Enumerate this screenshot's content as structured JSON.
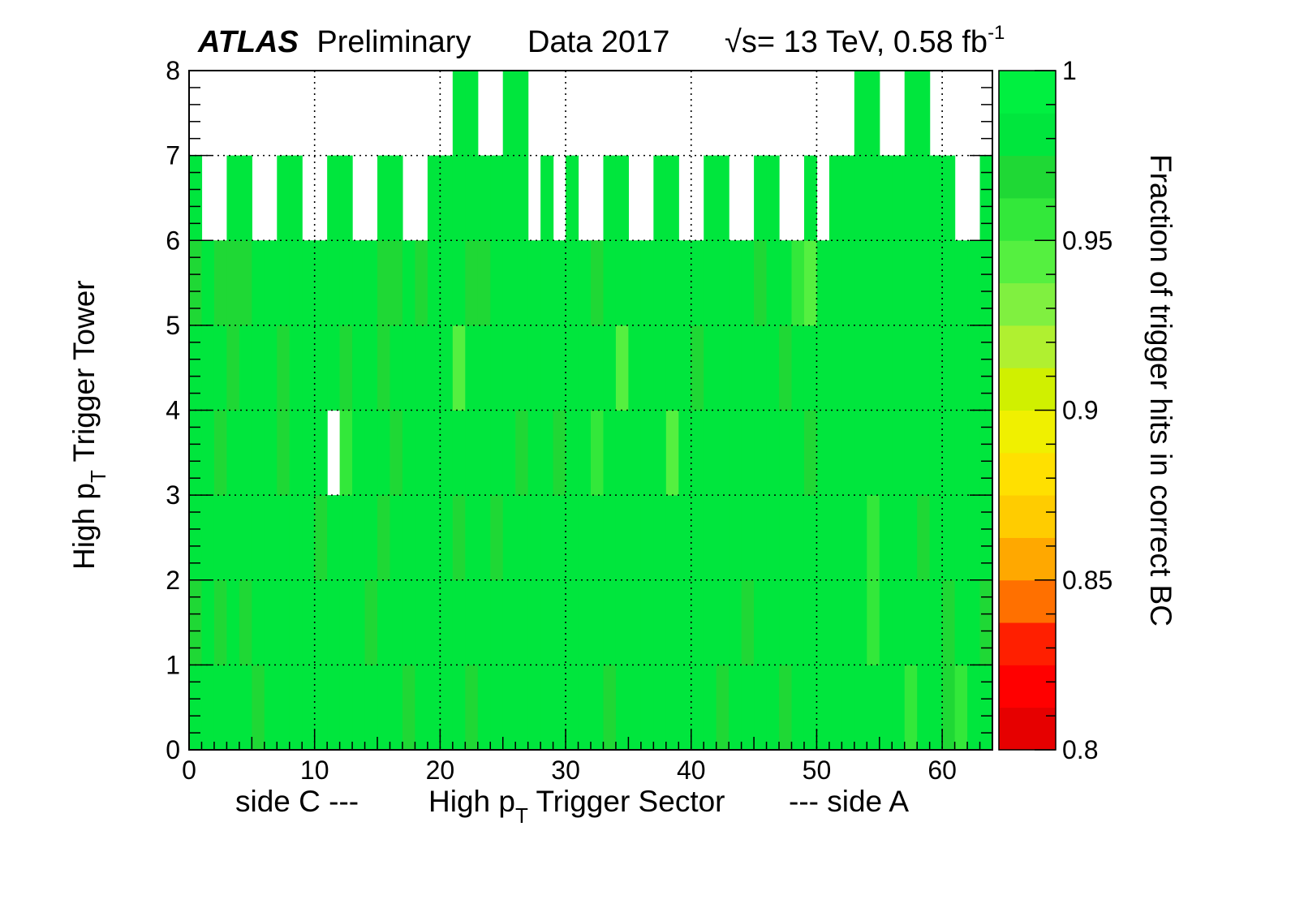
{
  "header": {
    "experiment": "ATLAS",
    "status": "Preliminary",
    "dataset": "Data 2017",
    "energy_sqrt": "√s",
    "energy_rest": "= 13 TeV, 0.58 fb",
    "lumi_exp": "-1"
  },
  "chart_data": {
    "type": "heatmap",
    "xlabel": {
      "left": "side C ---",
      "main": "High p",
      "main_sub": "T",
      "main_rest": " Trigger Sector",
      "right": "--- side A"
    },
    "ylabel": {
      "main": "High p",
      "sub": "T",
      "rest": " Trigger Tower"
    },
    "zlabel": "Fraction of trigger hits in correct BC",
    "xlim": [
      0,
      64
    ],
    "ylim": [
      0,
      8
    ],
    "zlim": [
      0.8,
      1.0
    ],
    "x_ticks": [
      "0",
      "10",
      "20",
      "30",
      "40",
      "50",
      "60"
    ],
    "y_ticks": [
      "0",
      "1",
      "2",
      "3",
      "4",
      "5",
      "6",
      "7",
      "8"
    ],
    "z_ticks": [
      "0.8",
      "0.85",
      "0.9",
      "0.95",
      "1"
    ],
    "x_grid": [
      10,
      20,
      30,
      40,
      50,
      60
    ],
    "y_grid": [
      1,
      2,
      3,
      4,
      5,
      6,
      7
    ],
    "default_value": 0.98,
    "palette": [
      "#e60000",
      "#ff0000",
      "#ff1f00",
      "#ff7000",
      "#ffa800",
      "#ffcc00",
      "#ffe000",
      "#f0f000",
      "#d0f000",
      "#b0f030",
      "#80f040",
      "#55f040",
      "#33e83a",
      "#1fd835",
      "#00e63d",
      "#00f040"
    ],
    "empty_cells": [
      {
        "row": 7,
        "cols": [
          0,
          1,
          2,
          3,
          4,
          5,
          6,
          7,
          8,
          9,
          10,
          11,
          12,
          13,
          14,
          15,
          16,
          17,
          18,
          19,
          20,
          23,
          24,
          27,
          28,
          29,
          30,
          31,
          32,
          33,
          34,
          35,
          36,
          37,
          38,
          39,
          40,
          41,
          42,
          43,
          44,
          45,
          46,
          47,
          48,
          49,
          50,
          51,
          52,
          55,
          56,
          59,
          60,
          61,
          62,
          63
        ]
      },
      {
        "row": 6,
        "cols": [
          1,
          2,
          5,
          6,
          9,
          10,
          13,
          14,
          17,
          18,
          27,
          29,
          31,
          32,
          35,
          36,
          39,
          40,
          43,
          44,
          47,
          48,
          50,
          61,
          62
        ]
      },
      {
        "row": 3,
        "cols": [
          11
        ]
      }
    ],
    "cells": [
      {
        "row": 5,
        "col": 0,
        "v": 0.97
      },
      {
        "row": 5,
        "col": 2,
        "v": 0.97
      },
      {
        "row": 5,
        "col": 3,
        "v": 0.97
      },
      {
        "row": 5,
        "col": 4,
        "v": 0.97
      },
      {
        "row": 5,
        "col": 15,
        "v": 0.97
      },
      {
        "row": 5,
        "col": 16,
        "v": 0.97
      },
      {
        "row": 5,
        "col": 18,
        "v": 0.97
      },
      {
        "row": 5,
        "col": 22,
        "v": 0.97
      },
      {
        "row": 5,
        "col": 23,
        "v": 0.97
      },
      {
        "row": 5,
        "col": 32,
        "v": 0.97
      },
      {
        "row": 5,
        "col": 45,
        "v": 0.97
      },
      {
        "row": 5,
        "col": 48,
        "v": 0.96
      },
      {
        "row": 5,
        "col": 49,
        "v": 0.945
      },
      {
        "row": 4,
        "col": 3,
        "v": 0.975
      },
      {
        "row": 4,
        "col": 7,
        "v": 0.97
      },
      {
        "row": 4,
        "col": 12,
        "v": 0.97
      },
      {
        "row": 4,
        "col": 15,
        "v": 0.975
      },
      {
        "row": 4,
        "col": 21,
        "v": 0.945
      },
      {
        "row": 4,
        "col": 34,
        "v": 0.945
      },
      {
        "row": 4,
        "col": 40,
        "v": 0.97
      },
      {
        "row": 4,
        "col": 47,
        "v": 0.975
      },
      {
        "row": 3,
        "col": 2,
        "v": 0.975
      },
      {
        "row": 3,
        "col": 7,
        "v": 0.97
      },
      {
        "row": 3,
        "col": 12,
        "v": 0.96
      },
      {
        "row": 3,
        "col": 16,
        "v": 0.975
      },
      {
        "row": 3,
        "col": 26,
        "v": 0.975
      },
      {
        "row": 3,
        "col": 29,
        "v": 0.975
      },
      {
        "row": 3,
        "col": 32,
        "v": 0.96
      },
      {
        "row": 3,
        "col": 38,
        "v": 0.945
      },
      {
        "row": 3,
        "col": 49,
        "v": 0.975
      },
      {
        "row": 2,
        "col": 10,
        "v": 0.97
      },
      {
        "row": 2,
        "col": 15,
        "v": 0.975
      },
      {
        "row": 2,
        "col": 21,
        "v": 0.97
      },
      {
        "row": 2,
        "col": 24,
        "v": 0.975
      },
      {
        "row": 2,
        "col": 54,
        "v": 0.96
      },
      {
        "row": 2,
        "col": 58,
        "v": 0.97
      },
      {
        "row": 1,
        "col": 0,
        "v": 0.975
      },
      {
        "row": 1,
        "col": 2,
        "v": 0.975
      },
      {
        "row": 1,
        "col": 4,
        "v": 0.975
      },
      {
        "row": 1,
        "col": 14,
        "v": 0.97
      },
      {
        "row": 1,
        "col": 44,
        "v": 0.97
      },
      {
        "row": 1,
        "col": 54,
        "v": 0.96
      },
      {
        "row": 1,
        "col": 60,
        "v": 0.97
      },
      {
        "row": 1,
        "col": 63,
        "v": 0.975
      },
      {
        "row": 0,
        "col": 5,
        "v": 0.97
      },
      {
        "row": 0,
        "col": 17,
        "v": 0.97
      },
      {
        "row": 0,
        "col": 22,
        "v": 0.97
      },
      {
        "row": 0,
        "col": 33,
        "v": 0.975
      },
      {
        "row": 0,
        "col": 42,
        "v": 0.97
      },
      {
        "row": 0,
        "col": 47,
        "v": 0.975
      },
      {
        "row": 0,
        "col": 57,
        "v": 0.96
      },
      {
        "row": 0,
        "col": 60,
        "v": 0.97
      },
      {
        "row": 0,
        "col": 61,
        "v": 0.96
      }
    ]
  }
}
